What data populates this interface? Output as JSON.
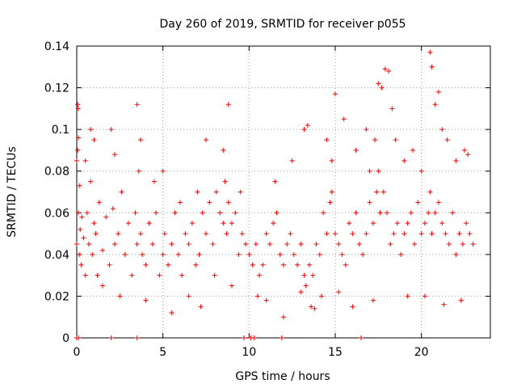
{
  "chart_data": {
    "type": "scatter",
    "title": "Day 260 of 2019, SRMTID for receiver p055",
    "xlabel": "GPS time / hours",
    "ylabel": "SRMTID / TECUs",
    "xlim": [
      0,
      24
    ],
    "ylim": [
      0,
      0.14
    ],
    "x_ticks": [
      0,
      5,
      10,
      15,
      20
    ],
    "x_tick_labels": [
      "0",
      "5",
      "10",
      "15",
      "20"
    ],
    "y_ticks": [
      0,
      0.02,
      0.04,
      0.06,
      0.08,
      0.1,
      0.12,
      0.14
    ],
    "y_tick_labels": [
      "0",
      "0.02",
      "0.04",
      "0.06",
      "0.08",
      "0.1",
      "0.12",
      "0.14"
    ],
    "grid": true,
    "marker": "+",
    "color": "#ff0000",
    "series": [
      {
        "name": "SRMTID",
        "x": [
          0.0,
          0.05,
          0.08,
          0.1,
          0.15,
          0.2,
          0.25,
          0.3,
          0.4,
          0.5,
          0.6,
          0.7,
          0.8,
          0.9,
          1.0,
          1.1,
          1.2,
          1.3,
          1.5,
          1.7,
          1.9,
          2.1,
          2.2,
          2.4,
          2.6,
          2.8,
          3.0,
          3.2,
          3.4,
          3.5,
          3.6,
          3.7,
          3.8,
          4.0,
          4.2,
          4.4,
          4.6,
          4.8,
          5.0,
          5.1,
          5.3,
          5.5,
          5.7,
          5.9,
          6.1,
          6.3,
          6.5,
          6.7,
          6.9,
          7.1,
          7.3,
          7.5,
          7.7,
          7.9,
          8.1,
          8.3,
          8.5,
          8.6,
          8.7,
          8.8,
          9.0,
          9.2,
          9.4,
          9.6,
          9.8,
          10.0,
          10.2,
          10.4,
          10.6,
          10.8,
          11.0,
          11.2,
          11.4,
          11.6,
          11.8,
          12.0,
          12.2,
          12.4,
          12.6,
          12.8,
          13.0,
          13.2,
          13.3,
          13.5,
          13.7,
          13.9,
          14.1,
          14.3,
          14.5,
          14.7,
          14.8,
          15.0,
          15.2,
          15.4,
          15.6,
          15.8,
          16.0,
          16.2,
          16.4,
          16.6,
          16.8,
          17.0,
          17.2,
          17.4,
          17.5,
          17.6,
          17.8,
          18.0,
          18.2,
          18.4,
          18.6,
          18.8,
          19.0,
          19.2,
          19.4,
          19.6,
          19.8,
          20.0,
          20.2,
          20.4,
          20.5,
          20.6,
          20.8,
          21.0,
          21.2,
          21.4,
          21.6,
          21.8,
          22.0,
          22.2,
          22.4,
          22.6,
          22.8,
          23.0,
          0.0,
          0.1,
          2.0,
          3.5,
          9.7,
          10.1,
          10.3,
          11.9,
          16.5,
          0.0,
          0.05,
          0.1,
          0.15,
          0.5,
          0.8,
          1.0,
          2.0,
          2.2,
          3.5,
          3.7,
          4.5,
          5.0,
          6.0,
          7.0,
          7.5,
          8.5,
          8.8,
          9.5,
          11.5,
          12.5,
          13.2,
          13.4,
          14.5,
          14.8,
          15.0,
          15.5,
          16.2,
          16.8,
          17.0,
          17.3,
          17.5,
          17.7,
          17.9,
          18.1,
          18.3,
          18.5,
          19.0,
          19.5,
          20.0,
          20.5,
          20.6,
          20.8,
          21.0,
          21.2,
          21.5,
          22.0,
          22.5,
          22.7,
          1.5,
          2.5,
          4.0,
          5.5,
          6.5,
          7.2,
          8.0,
          9.0,
          10.5,
          11.0,
          12.0,
          13.0,
          13.6,
          13.8,
          14.2,
          15.2,
          16.0,
          17.2,
          19.2,
          20.2,
          21.3,
          22.3
        ],
        "y": [
          0.045,
          0.09,
          0.11,
          0.06,
          0.04,
          0.052,
          0.035,
          0.058,
          0.048,
          0.03,
          0.06,
          0.045,
          0.075,
          0.04,
          0.055,
          0.05,
          0.03,
          0.065,
          0.042,
          0.058,
          0.035,
          0.062,
          0.045,
          0.05,
          0.07,
          0.04,
          0.055,
          0.03,
          0.06,
          0.045,
          0.08,
          0.05,
          0.04,
          0.035,
          0.055,
          0.045,
          0.06,
          0.03,
          0.04,
          0.05,
          0.035,
          0.045,
          0.06,
          0.04,
          0.03,
          0.05,
          0.045,
          0.055,
          0.035,
          0.04,
          0.06,
          0.05,
          0.065,
          0.045,
          0.07,
          0.06,
          0.055,
          0.075,
          0.05,
          0.065,
          0.055,
          0.06,
          0.04,
          0.05,
          0.045,
          0.04,
          0.035,
          0.045,
          0.03,
          0.035,
          0.05,
          0.045,
          0.055,
          0.06,
          0.04,
          0.035,
          0.045,
          0.05,
          0.04,
          0.035,
          0.045,
          0.03,
          0.025,
          0.035,
          0.03,
          0.045,
          0.04,
          0.06,
          0.05,
          0.065,
          0.07,
          0.05,
          0.045,
          0.04,
          0.035,
          0.055,
          0.05,
          0.06,
          0.045,
          0.04,
          0.05,
          0.065,
          0.055,
          0.07,
          0.08,
          0.06,
          0.07,
          0.06,
          0.045,
          0.05,
          0.055,
          0.04,
          0.05,
          0.055,
          0.06,
          0.045,
          0.065,
          0.05,
          0.055,
          0.06,
          0.07,
          0.05,
          0.06,
          0.065,
          0.055,
          0.05,
          0.045,
          0.06,
          0.04,
          0.05,
          0.045,
          0.055,
          0.05,
          0.045,
          0.0,
          0.0,
          0.0,
          0.0,
          0.0,
          0.0,
          0.0,
          0.0,
          0.0,
          0.085,
          0.112,
          0.096,
          0.073,
          0.085,
          0.1,
          0.095,
          0.1,
          0.088,
          0.112,
          0.095,
          0.075,
          0.08,
          0.065,
          0.07,
          0.095,
          0.09,
          0.112,
          0.07,
          0.075,
          0.085,
          0.1,
          0.102,
          0.095,
          0.085,
          0.117,
          0.105,
          0.09,
          0.1,
          0.08,
          0.095,
          0.122,
          0.12,
          0.129,
          0.128,
          0.11,
          0.095,
          0.085,
          0.09,
          0.08,
          0.137,
          0.13,
          0.112,
          0.118,
          0.1,
          0.095,
          0.085,
          0.09,
          0.088,
          0.025,
          0.02,
          0.018,
          0.012,
          0.02,
          0.015,
          0.03,
          0.025,
          0.02,
          0.018,
          0.01,
          0.022,
          0.015,
          0.014,
          0.02,
          0.022,
          0.015,
          0.018,
          0.02,
          0.02,
          0.016,
          0.018
        ]
      }
    ]
  }
}
